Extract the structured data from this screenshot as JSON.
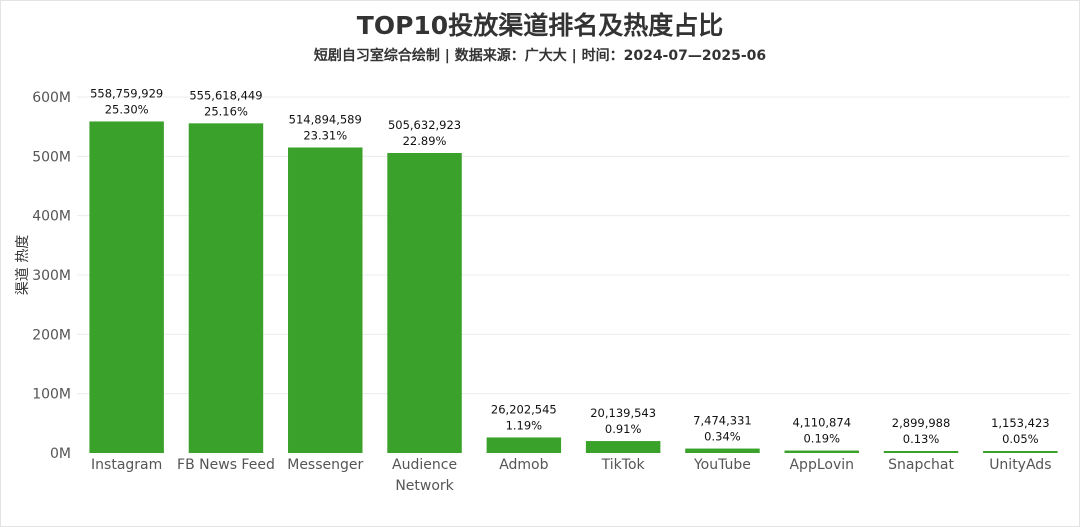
{
  "chart_data": {
    "type": "bar",
    "title": "TOP10投放渠道排名及热度占比",
    "subtitle": "短剧自习室综合绘制 | 数据来源：广大大 | 时间：2024-07—2025-06",
    "ylabel": "渠道 热度",
    "xlabel": "",
    "ylim": [
      0,
      600000000
    ],
    "yticks": [
      {
        "value": 0,
        "label": "0M"
      },
      {
        "value": 100000000,
        "label": "100M"
      },
      {
        "value": 200000000,
        "label": "200M"
      },
      {
        "value": 300000000,
        "label": "300M"
      },
      {
        "value": 400000000,
        "label": "400M"
      },
      {
        "value": 500000000,
        "label": "500M"
      },
      {
        "value": 600000000,
        "label": "600M"
      }
    ],
    "grid": true,
    "bar_color": "#3aa12a",
    "categories": [
      [
        "Instagram"
      ],
      [
        "FB News Feed"
      ],
      [
        "Messenger"
      ],
      [
        "Audience",
        "Network"
      ],
      [
        "Admob"
      ],
      [
        "TikTok"
      ],
      [
        "YouTube"
      ],
      [
        "AppLovin"
      ],
      [
        "Snapchat"
      ],
      [
        "UnityAds"
      ]
    ],
    "values": [
      558759929,
      555618449,
      514894589,
      505632923,
      26202545,
      20139543,
      7474331,
      4110874,
      2899988,
      1153423
    ],
    "value_labels": [
      "558,759,929",
      "555,618,449",
      "514,894,589",
      "505,632,923",
      "26,202,545",
      "20,139,543",
      "7,474,331",
      "4,110,874",
      "2,899,988",
      "1,153,423"
    ],
    "percent_labels": [
      "25.30%",
      "25.16%",
      "23.31%",
      "22.89%",
      "1.19%",
      "0.91%",
      "0.34%",
      "0.19%",
      "0.13%",
      "0.05%"
    ]
  }
}
